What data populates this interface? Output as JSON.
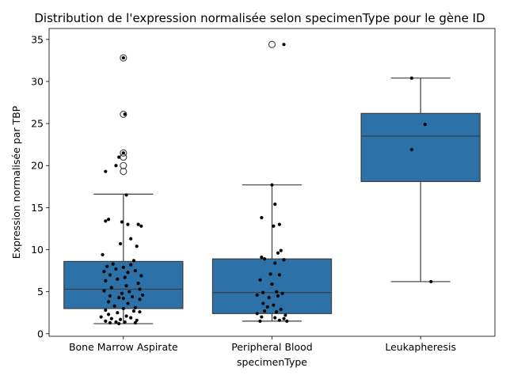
{
  "chart_data": {
    "type": "box",
    "title": "Distribution de l'expression normalisée selon specimenType pour le gène ID",
    "xlabel": "specimenType",
    "ylabel": "Expression normalisée par TBP",
    "ylim": [
      -0.3,
      36.3
    ],
    "yticks": [
      0,
      5,
      10,
      15,
      20,
      25,
      30,
      35
    ],
    "ytick_labels": [
      "0",
      "5",
      "10",
      "15",
      "20",
      "25",
      "30",
      "35"
    ],
    "categories": [
      "Bone Marrow Aspirate",
      "Peripheral Blood",
      "Leukapheresis"
    ],
    "colors": {
      "box": "#2c72a8",
      "line": "#3d3d3d",
      "point": "#000000"
    },
    "boxes": [
      {
        "category": "Bone Marrow Aspirate",
        "whisker_low": 1.2,
        "q1": 3.0,
        "median": 5.3,
        "q3": 8.6,
        "whisker_high": 16.6,
        "outliers": [
          19.3,
          20.0,
          21.0,
          21.5,
          26.1,
          32.8
        ]
      },
      {
        "category": "Peripheral Blood",
        "whisker_low": 1.5,
        "q1": 2.4,
        "median": 4.9,
        "q3": 8.9,
        "whisker_high": 17.7,
        "outliers": [
          34.4
        ]
      },
      {
        "category": "Leukapheresis",
        "whisker_low": 6.2,
        "q1": 18.1,
        "median": 23.5,
        "q3": 26.2,
        "whisker_high": 30.4,
        "outliers": []
      }
    ],
    "points": [
      {
        "category": "Bone Marrow Aspirate",
        "y": [
          32.8,
          26.1,
          21.5,
          21.0,
          20.0,
          19.3,
          16.5,
          13.6,
          13.4,
          13.3,
          13.0,
          13.0,
          12.8,
          11.3,
          10.7,
          10.4,
          9.4,
          8.7,
          8.3,
          8.2,
          8.0,
          7.9,
          7.7,
          7.5,
          7.4,
          7.3,
          7.0,
          6.9,
          6.7,
          6.5,
          6.3,
          6.0,
          5.7,
          5.5,
          5.3,
          5.1,
          5.0,
          4.8,
          4.6,
          4.5,
          4.4,
          4.3,
          4.2,
          4.1,
          3.8,
          3.6,
          3.3,
          3.1,
          3.0,
          2.8,
          2.7,
          2.6,
          2.5,
          2.3,
          2.1,
          2.0,
          1.9,
          1.8,
          1.7,
          1.6,
          1.5,
          1.4,
          1.4,
          1.3,
          1.3,
          1.2
        ],
        "jitter": [
          0.0,
          0.01,
          0.0,
          -0.03,
          -0.05,
          -0.12,
          0.02,
          -0.1,
          -0.12,
          -0.01,
          0.1,
          0.03,
          0.12,
          0.05,
          -0.02,
          0.09,
          -0.14,
          0.07,
          -0.07,
          0.05,
          -0.11,
          0.0,
          -0.05,
          0.08,
          -0.13,
          0.03,
          -0.09,
          0.12,
          0.01,
          -0.04,
          -0.12,
          0.1,
          0.02,
          -0.08,
          0.11,
          -0.13,
          0.04,
          -0.01,
          0.13,
          -0.09,
          0.06,
          -0.03,
          0.0,
          0.11,
          -0.1,
          0.03,
          -0.06,
          0.08,
          0.0,
          -0.12,
          0.07,
          0.11,
          -0.04,
          -0.1,
          0.02,
          -0.15,
          0.05,
          -0.08,
          -0.02,
          0.09,
          -0.12,
          -0.05,
          0.01,
          -0.09,
          0.08,
          -0.03
        ]
      },
      {
        "category": "Peripheral Blood",
        "y": [
          34.4,
          17.7,
          15.4,
          13.8,
          13.0,
          12.8,
          9.9,
          9.6,
          9.1,
          8.9,
          8.8,
          8.4,
          7.1,
          7.0,
          6.4,
          5.9,
          5.0,
          4.9,
          4.8,
          4.6,
          4.5,
          4.3,
          3.6,
          3.4,
          3.2,
          2.9,
          2.7,
          2.6,
          2.4,
          2.2,
          2.0,
          1.9,
          1.8,
          1.6,
          1.5,
          1.5
        ],
        "jitter": [
          0.08,
          0.0,
          0.02,
          -0.07,
          0.05,
          0.01,
          0.06,
          0.04,
          -0.07,
          -0.05,
          0.08,
          0.02,
          -0.01,
          0.05,
          -0.08,
          0.0,
          0.03,
          -0.06,
          0.07,
          -0.1,
          0.04,
          -0.02,
          -0.06,
          0.01,
          -0.03,
          0.06,
          -0.05,
          0.03,
          -0.1,
          0.09,
          -0.07,
          0.02,
          0.08,
          0.05,
          -0.08,
          0.1
        ]
      },
      {
        "category": "Leukapheresis",
        "y": [
          30.4,
          24.9,
          21.9,
          6.2
        ],
        "jitter": [
          -0.06,
          0.03,
          -0.06,
          0.07
        ]
      }
    ]
  }
}
